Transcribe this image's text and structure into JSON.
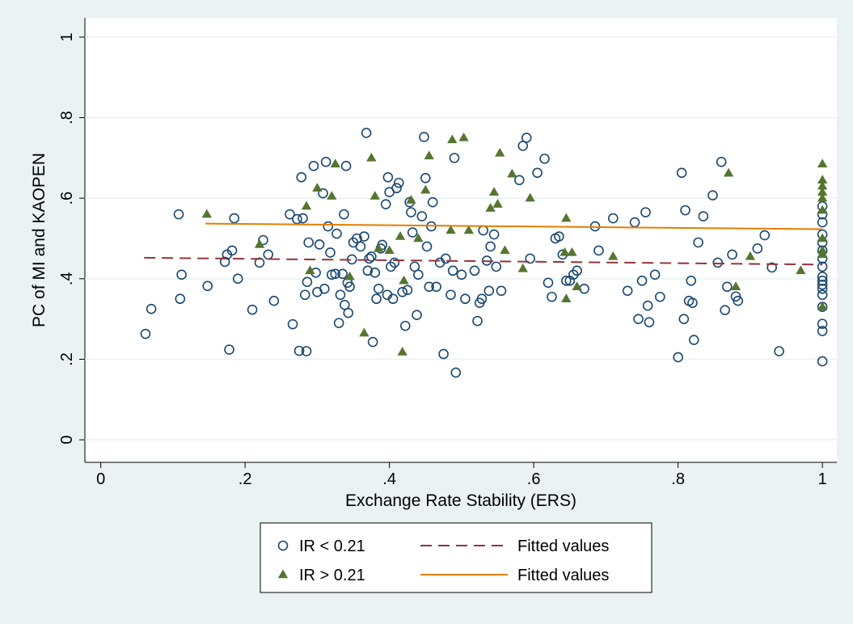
{
  "chart_data": {
    "type": "scatter",
    "x_label": "Exchange Rate Stability (ERS)",
    "y_label": "PC of MI and KAOPEN",
    "xlim": [
      -0.022,
      1.02
    ],
    "ylim": [
      -0.056,
      1.048
    ],
    "xticks": [
      0,
      {
        "value": 0.2,
        "label": ".2"
      },
      {
        "value": 0.4,
        "label": ".4"
      },
      {
        "value": 0.6,
        "label": ".6"
      },
      {
        "value": 0.8,
        "label": ".8"
      },
      1
    ],
    "yticks": [
      0,
      {
        "value": 0.2,
        "label": ".2"
      },
      {
        "value": 0.4,
        "label": ".4"
      },
      {
        "value": 0.6,
        "label": ".6"
      },
      {
        "value": 0.8,
        "label": ".8"
      },
      1
    ],
    "grid": true,
    "legend": "bottom",
    "series": [
      {
        "name": "IR < 0.21",
        "marker": "circle",
        "color": "#1a476f",
        "x": [
          0.062,
          0.07,
          0.108,
          0.11,
          0.112,
          0.148,
          0.172,
          0.175,
          0.178,
          0.182,
          0.185,
          0.19,
          0.21,
          0.22,
          0.225,
          0.232,
          0.24,
          0.262,
          0.266,
          0.272,
          0.275,
          0.278,
          0.28,
          0.283,
          0.285,
          0.286,
          0.288,
          0.295,
          0.298,
          0.3,
          0.303,
          0.308,
          0.31,
          0.312,
          0.315,
          0.318,
          0.32,
          0.325,
          0.327,
          0.33,
          0.332,
          0.335,
          0.337,
          0.338,
          0.34,
          0.342,
          0.343,
          0.345,
          0.348,
          0.35,
          0.355,
          0.36,
          0.365,
          0.368,
          0.37,
          0.372,
          0.375,
          0.377,
          0.38,
          0.382,
          0.385,
          0.388,
          0.39,
          0.395,
          0.397,
          0.398,
          0.4,
          0.402,
          0.405,
          0.407,
          0.41,
          0.413,
          0.418,
          0.422,
          0.425,
          0.428,
          0.43,
          0.432,
          0.435,
          0.438,
          0.44,
          0.445,
          0.448,
          0.45,
          0.452,
          0.455,
          0.458,
          0.46,
          0.465,
          0.47,
          0.475,
          0.478,
          0.485,
          0.488,
          0.49,
          0.492,
          0.5,
          0.505,
          0.518,
          0.522,
          0.525,
          0.528,
          0.53,
          0.535,
          0.538,
          0.54,
          0.545,
          0.548,
          0.555,
          0.58,
          0.585,
          0.59,
          0.595,
          0.605,
          0.615,
          0.62,
          0.625,
          0.63,
          0.635,
          0.64,
          0.645,
          0.65,
          0.655,
          0.66,
          0.67,
          0.685,
          0.69,
          0.71,
          0.73,
          0.74,
          0.745,
          0.75,
          0.755,
          0.758,
          0.76,
          0.768,
          0.775,
          0.8,
          0.805,
          0.808,
          0.81,
          0.815,
          0.818,
          0.82,
          0.822,
          0.828,
          0.835,
          0.848,
          0.855,
          0.86,
          0.865,
          0.868,
          0.875,
          0.88,
          0.883,
          0.91,
          0.92,
          0.93,
          0.94,
          1,
          1,
          1,
          1,
          1,
          1,
          1,
          1,
          1,
          1,
          1,
          1,
          1,
          1,
          1,
          1,
          1
        ],
        "values": [
          0.263,
          0.325,
          0.56,
          0.35,
          0.41,
          0.382,
          0.442,
          0.46,
          0.224,
          0.47,
          0.55,
          0.4,
          0.323,
          0.44,
          0.496,
          0.46,
          0.345,
          0.56,
          0.287,
          0.548,
          0.221,
          0.652,
          0.55,
          0.36,
          0.22,
          0.392,
          0.49,
          0.68,
          0.415,
          0.367,
          0.485,
          0.612,
          0.375,
          0.69,
          0.53,
          0.465,
          0.41,
          0.412,
          0.512,
          0.29,
          0.36,
          0.412,
          0.56,
          0.335,
          0.68,
          0.39,
          0.315,
          0.38,
          0.448,
          0.49,
          0.5,
          0.48,
          0.505,
          0.762,
          0.42,
          0.45,
          0.455,
          0.243,
          0.415,
          0.35,
          0.375,
          0.475,
          0.484,
          0.585,
          0.36,
          0.652,
          0.615,
          0.43,
          0.35,
          0.44,
          0.625,
          0.638,
          0.367,
          0.283,
          0.372,
          0.59,
          0.565,
          0.515,
          0.43,
          0.31,
          0.41,
          0.555,
          0.752,
          0.65,
          0.48,
          0.38,
          0.53,
          0.59,
          0.38,
          0.44,
          0.213,
          0.45,
          0.36,
          0.42,
          0.7,
          0.167,
          0.41,
          0.35,
          0.42,
          0.295,
          0.34,
          0.35,
          0.52,
          0.445,
          0.37,
          0.48,
          0.51,
          0.43,
          0.37,
          0.645,
          0.73,
          0.75,
          0.45,
          0.663,
          0.698,
          0.39,
          0.355,
          0.5,
          0.505,
          0.46,
          0.395,
          0.395,
          0.41,
          0.42,
          0.375,
          0.53,
          0.47,
          0.55,
          0.37,
          0.54,
          0.3,
          0.395,
          0.565,
          0.333,
          0.292,
          0.41,
          0.355,
          0.205,
          0.663,
          0.3,
          0.57,
          0.345,
          0.395,
          0.34,
          0.248,
          0.49,
          0.555,
          0.607,
          0.44,
          0.69,
          0.322,
          0.38,
          0.46,
          0.356,
          0.345,
          0.475,
          0.508,
          0.428,
          0.22,
          0.195,
          0.27,
          0.288,
          0.33,
          0.36,
          0.375,
          0.385,
          0.395,
          0.405,
          0.43,
          0.45,
          0.47,
          0.49,
          0.51,
          0.54,
          0.56,
          0.58
        ]
      },
      {
        "name": "IR > 0.21",
        "marker": "triangle",
        "color": "#55752f",
        "x": [
          0.147,
          0.22,
          0.285,
          0.29,
          0.32,
          0.325,
          0.3,
          0.345,
          0.365,
          0.375,
          0.38,
          0.385,
          0.4,
          0.415,
          0.418,
          0.42,
          0.43,
          0.44,
          0.45,
          0.455,
          0.485,
          0.487,
          0.503,
          0.51,
          0.54,
          0.545,
          0.55,
          0.553,
          0.56,
          0.57,
          0.585,
          0.595,
          0.645,
          0.645,
          0.643,
          0.653,
          0.66,
          0.71,
          0.87,
          0.88,
          0.9,
          0.97,
          1,
          1,
          1,
          1,
          1,
          1,
          1,
          1,
          1,
          1
        ],
        "values": [
          0.56,
          0.485,
          0.58,
          0.42,
          0.605,
          0.685,
          0.625,
          0.405,
          0.265,
          0.7,
          0.605,
          0.475,
          0.47,
          0.505,
          0.218,
          0.395,
          0.595,
          0.5,
          0.62,
          0.705,
          0.52,
          0.745,
          0.75,
          0.52,
          0.575,
          0.615,
          0.585,
          0.712,
          0.47,
          0.66,
          0.425,
          0.6,
          0.35,
          0.55,
          0.465,
          0.465,
          0.38,
          0.455,
          0.662,
          0.38,
          0.455,
          0.42,
          0.685,
          0.645,
          0.63,
          0.615,
          0.6,
          0.57,
          0.5,
          0.47,
          0.46,
          0.33
        ]
      },
      {
        "name": "Fitted values",
        "marker": "dashed-line",
        "color": "#90353b",
        "x": [
          0.06,
          1
        ],
        "values": [
          0.452,
          0.435
        ]
      },
      {
        "name": "Fitted values",
        "marker": "line",
        "color": "#e37e00",
        "x": [
          0.145,
          1
        ],
        "values": [
          0.537,
          0.523
        ]
      }
    ]
  }
}
